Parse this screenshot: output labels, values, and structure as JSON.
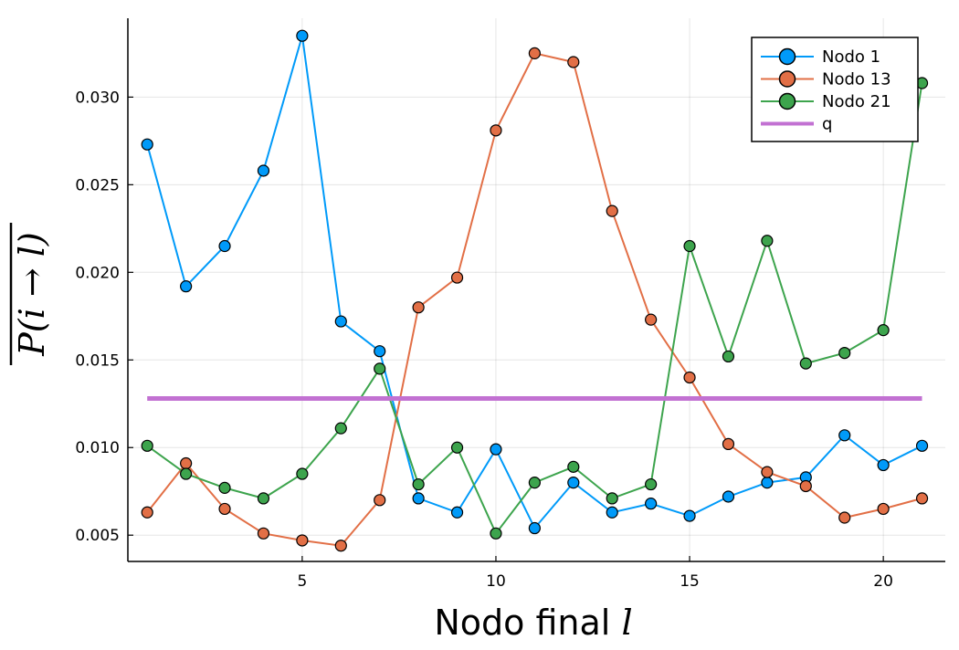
{
  "chart_data": {
    "type": "line",
    "xlabel": "Nodo final",
    "xlabel_var": "l",
    "ylabel": "P(i → l)",
    "xlim": [
      0.5,
      21.6
    ],
    "ylim": [
      0.0035,
      0.0345
    ],
    "xticks": [
      5,
      10,
      15,
      20
    ],
    "xtick_labels": [
      "5",
      "10",
      "15",
      "20"
    ],
    "yticks": [
      0.005,
      0.01,
      0.015,
      0.02,
      0.025,
      0.03
    ],
    "ytick_labels": [
      "0.005",
      "0.010",
      "0.015",
      "0.020",
      "0.025",
      "0.030"
    ],
    "grid": true,
    "legend_position": "top-right",
    "x": [
      1,
      2,
      3,
      4,
      5,
      6,
      7,
      8,
      9,
      10,
      11,
      12,
      13,
      14,
      15,
      16,
      17,
      18,
      19,
      20,
      21
    ],
    "series": [
      {
        "name": "Nodo 1",
        "color": "#009af9",
        "marker": "circle",
        "values": [
          0.0273,
          0.0192,
          0.0215,
          0.0258,
          0.0335,
          0.0172,
          0.0155,
          0.0071,
          0.0063,
          0.0099,
          0.0054,
          0.008,
          0.0063,
          0.0068,
          0.0061,
          0.0072,
          0.008,
          0.0083,
          0.0107,
          0.009,
          0.0101
        ]
      },
      {
        "name": "Nodo 13",
        "color": "#e26f46",
        "marker": "circle",
        "values": [
          0.0063,
          0.0091,
          0.0065,
          0.0051,
          0.0047,
          0.0044,
          0.007,
          0.018,
          0.0197,
          0.0281,
          0.0325,
          0.032,
          0.0235,
          0.0173,
          0.014,
          0.0102,
          0.0086,
          0.0078,
          0.006,
          0.0065,
          0.0071
        ]
      },
      {
        "name": "Nodo 21",
        "color": "#3da44d",
        "marker": "circle",
        "values": [
          0.0101,
          0.0085,
          0.0077,
          0.0071,
          0.0085,
          0.0111,
          0.0145,
          0.0079,
          0.01,
          0.0051,
          0.008,
          0.0089,
          0.0071,
          0.0079,
          0.0215,
          0.0152,
          0.0218,
          0.0148,
          0.0154,
          0.0167,
          0.0308
        ]
      },
      {
        "name": "q",
        "color": "#c271d2",
        "marker": "none",
        "values": [
          0.0128,
          0.0128,
          0.0128,
          0.0128,
          0.0128,
          0.0128,
          0.0128,
          0.0128,
          0.0128,
          0.0128,
          0.0128,
          0.0128,
          0.0128,
          0.0128,
          0.0128,
          0.0128,
          0.0128,
          0.0128,
          0.0128,
          0.0128,
          0.0128
        ]
      }
    ]
  }
}
